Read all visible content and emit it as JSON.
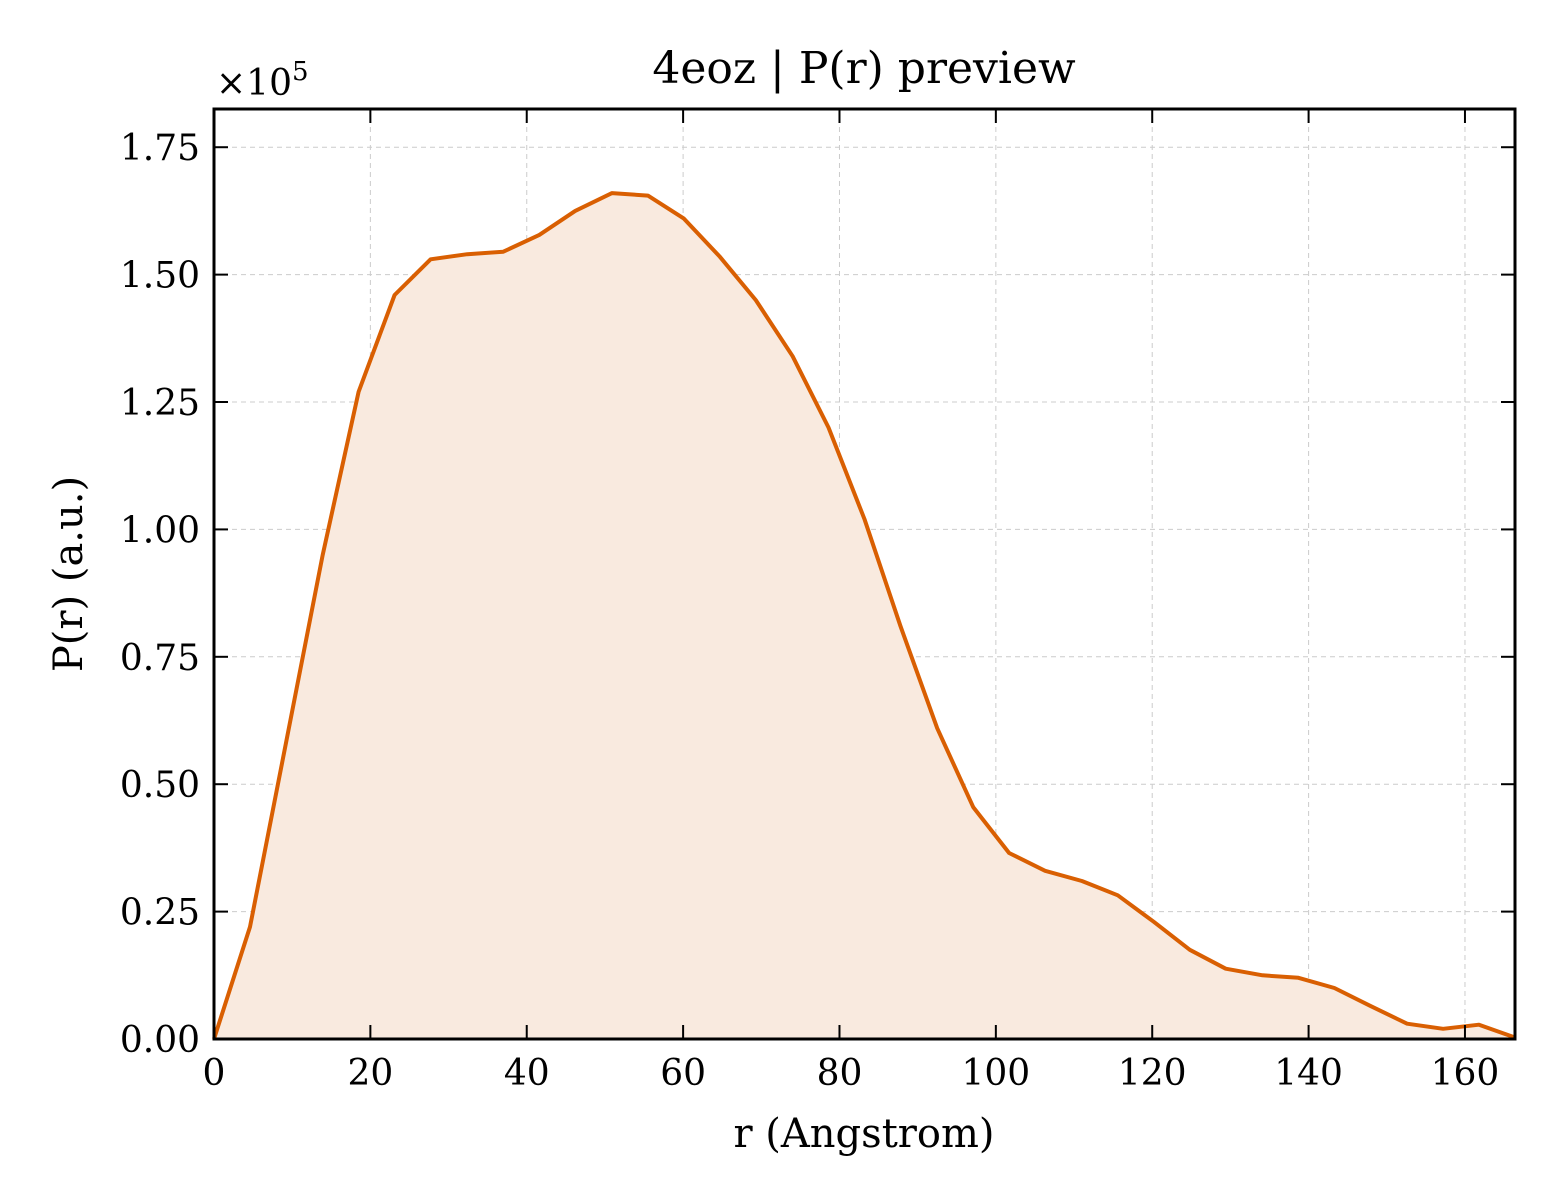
{
  "chart_data": {
    "type": "area",
    "title": "4eoz | P(r) preview",
    "xlabel": "r (Angstrom)",
    "ylabel": "P(r) (a.u.)",
    "y_multiplier_label": "×10",
    "y_multiplier_exponent": "5",
    "xlim": [
      0,
      166.4
    ],
    "ylim": [
      0,
      1.825
    ],
    "xticks": [
      0,
      20,
      40,
      60,
      80,
      100,
      120,
      140,
      160
    ],
    "xtick_labels": [
      "0",
      "20",
      "40",
      "60",
      "80",
      "100",
      "120",
      "140",
      "160"
    ],
    "yticks": [
      0,
      0.25,
      0.5,
      0.75,
      1.0,
      1.25,
      1.5,
      1.75
    ],
    "ytick_labels": [
      "0.00",
      "0.25",
      "0.50",
      "0.75",
      "1.00",
      "1.25",
      "1.50",
      "1.75"
    ],
    "grid": true,
    "line_color": "#d95f02",
    "fill_color": "#f9eadf",
    "series": [
      {
        "x": [
          0,
          4.6,
          9.2,
          13.9,
          18.5,
          23.1,
          27.7,
          32.4,
          37.0,
          41.6,
          46.2,
          50.9,
          55.5,
          60.1,
          64.7,
          69.3,
          74.0,
          78.6,
          83.2,
          87.8,
          92.5,
          97.1,
          101.7,
          106.3,
          111.0,
          115.6,
          120.2,
          124.8,
          129.4,
          134.1,
          138.7,
          143.3,
          147.9,
          152.6,
          157.2,
          161.8,
          166.4
        ],
        "y": [
          0.0,
          0.22,
          0.58,
          0.95,
          1.27,
          1.46,
          1.53,
          1.54,
          1.545,
          1.578,
          1.625,
          1.66,
          1.655,
          1.61,
          1.535,
          1.45,
          1.34,
          1.2,
          1.02,
          0.81,
          0.61,
          0.455,
          0.365,
          0.33,
          0.31,
          0.282,
          0.23,
          0.175,
          0.138,
          0.125,
          0.12,
          0.1,
          0.065,
          0.03,
          0.02,
          0.028,
          0.003
        ]
      }
    ]
  }
}
